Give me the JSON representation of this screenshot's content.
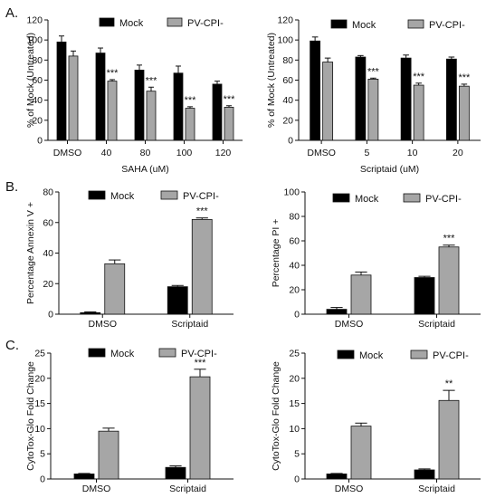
{
  "figure": {
    "panel_labels": [
      "A.",
      "B.",
      "C."
    ],
    "colors": {
      "mock": "#000000",
      "pv_cpi": "#a6a6a6",
      "axis": "#111111"
    }
  },
  "chart_data": [
    {
      "type": "bar",
      "panel": "A.",
      "ylabel": "% of Mock (Untreated)",
      "xlabel": "SAHA (uM)",
      "ylim": [
        0,
        120
      ],
      "yticks": [
        0,
        20,
        40,
        60,
        80,
        100,
        120
      ],
      "legend": "top",
      "categories": [
        "DMSO",
        "40",
        "80",
        "100",
        "120"
      ],
      "series": [
        {
          "name": "Mock",
          "color": "#000000",
          "values": [
            98,
            87,
            70,
            67,
            56
          ],
          "errors": [
            6,
            5,
            5,
            7,
            3
          ],
          "significance": [
            "",
            "",
            "",
            "",
            ""
          ]
        },
        {
          "name": "PV-CPI-",
          "color": "#a6a6a6",
          "values": [
            84,
            59,
            49,
            32,
            33
          ],
          "errors": [
            5,
            1.5,
            4,
            1.5,
            1.5
          ],
          "significance": [
            "",
            "***",
            "***",
            "***",
            "***"
          ]
        }
      ]
    },
    {
      "type": "bar",
      "panel": "A.",
      "ylabel": "% of Mock (Untreated)",
      "xlabel": "Scriptaid (uM)",
      "ylim": [
        0,
        120
      ],
      "yticks": [
        0,
        20,
        40,
        60,
        80,
        100,
        120
      ],
      "legend": "top",
      "categories": [
        "DMSO",
        "5",
        "10",
        "20"
      ],
      "series": [
        {
          "name": "Mock",
          "color": "#000000",
          "values": [
            99,
            83,
            82,
            81
          ],
          "errors": [
            4,
            1.5,
            3,
            2
          ],
          "significance": [
            "",
            "",
            "",
            ""
          ]
        },
        {
          "name": "PV-CPI-",
          "color": "#a6a6a6",
          "values": [
            78,
            61,
            55,
            54
          ],
          "errors": [
            4,
            1,
            2,
            2
          ],
          "significance": [
            "",
            "***",
            "***",
            "***"
          ]
        }
      ]
    },
    {
      "type": "bar",
      "panel": "B.",
      "ylabel": "Percentage Annexin V +",
      "xlabel": "",
      "ylim": [
        0,
        80
      ],
      "yticks": [
        0,
        20,
        40,
        60,
        80
      ],
      "legend": "top",
      "categories": [
        "DMSO",
        "Scriptaid"
      ],
      "series": [
        {
          "name": "Mock",
          "color": "#000000",
          "values": [
            1,
            18
          ],
          "errors": [
            0.5,
            0.8
          ],
          "significance": [
            "",
            ""
          ]
        },
        {
          "name": "PV-CPI-",
          "color": "#a6a6a6",
          "values": [
            33,
            62
          ],
          "errors": [
            2.5,
            1
          ],
          "significance": [
            "",
            "***"
          ]
        }
      ]
    },
    {
      "type": "bar",
      "panel": "B.",
      "ylabel": "Percentage PI +",
      "xlabel": "",
      "ylim": [
        0,
        100
      ],
      "yticks": [
        0,
        20,
        40,
        60,
        80,
        100
      ],
      "legend": "top",
      "categories": [
        "DMSO",
        "Scriptaid"
      ],
      "series": [
        {
          "name": "Mock",
          "color": "#000000",
          "values": [
            4,
            30
          ],
          "errors": [
            1.5,
            1
          ],
          "significance": [
            "",
            ""
          ]
        },
        {
          "name": "PV-CPI-",
          "color": "#a6a6a6",
          "values": [
            32,
            55
          ],
          "errors": [
            2.5,
            1.5
          ],
          "significance": [
            "",
            "***"
          ]
        }
      ]
    },
    {
      "type": "bar",
      "panel": "C.",
      "ylabel": "CytoTox-Glo Fold Change",
      "xlabel": "",
      "ylim": [
        0,
        25
      ],
      "yticks": [
        0,
        5,
        10,
        15,
        20,
        25
      ],
      "legend": "top",
      "categories": [
        "DMSO",
        "Scriptaid"
      ],
      "series": [
        {
          "name": "Mock",
          "color": "#000000",
          "values": [
            1,
            2.3
          ],
          "errors": [
            0.1,
            0.3
          ],
          "significance": [
            "",
            ""
          ]
        },
        {
          "name": "PV-CPI-",
          "color": "#a6a6a6",
          "values": [
            9.5,
            20.3
          ],
          "errors": [
            0.6,
            1.5
          ],
          "significance": [
            "",
            "***"
          ]
        }
      ]
    },
    {
      "type": "bar",
      "panel": "C.",
      "ylabel": "CytoTox-Glo Fold Change",
      "xlabel": "",
      "ylim": [
        0,
        25
      ],
      "yticks": [
        0,
        5,
        10,
        15,
        20,
        25
      ],
      "legend": "top",
      "categories": [
        "DMSO",
        "Scriptaid"
      ],
      "series": [
        {
          "name": "Mock",
          "color": "#000000",
          "values": [
            1,
            1.8
          ],
          "errors": [
            0.1,
            0.2
          ],
          "significance": [
            "",
            ""
          ]
        },
        {
          "name": "PV-CPI-",
          "color": "#a6a6a6",
          "values": [
            10.5,
            15.6
          ],
          "errors": [
            0.6,
            2
          ],
          "significance": [
            "",
            "**"
          ]
        }
      ]
    }
  ]
}
